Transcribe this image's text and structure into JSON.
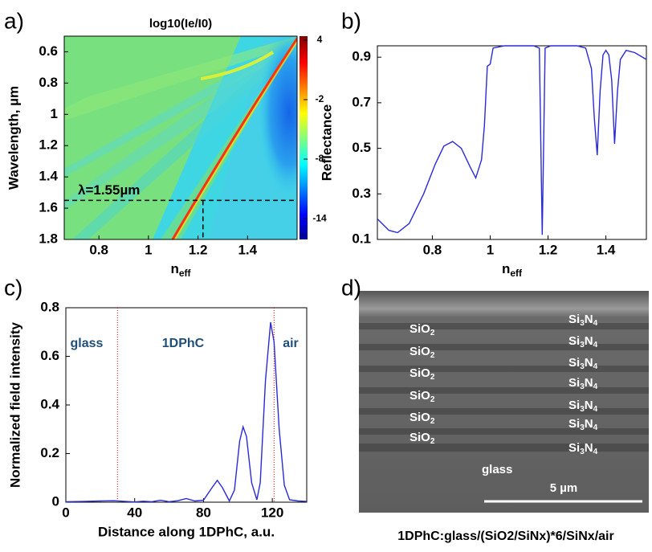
{
  "chart_data": [
    {
      "type": "heatmap",
      "panel_label": "a)",
      "title": "log10(Ie/I0)",
      "xlabel": "neff",
      "ylabel": "Wavelength, µm",
      "xlim": [
        0.66,
        1.6
      ],
      "xticks": [
        0.8,
        1,
        1.2,
        1.4
      ],
      "ylim": [
        1.8,
        0.5
      ],
      "yticks": [
        0.6,
        0.8,
        1,
        1.2,
        1.4,
        1.6,
        1.8
      ],
      "clim": [
        -16.1,
        4.4
      ],
      "cticks": [
        4,
        -2,
        -8,
        -14
      ],
      "annotation": "λ=1.55µm",
      "marker": {
        "x": 1.22,
        "y": 1.55
      }
    },
    {
      "type": "line",
      "panel_label": "b)",
      "xlabel": "neff",
      "ylabel": "Reflectance",
      "xlim": [
        0.61,
        1.54
      ],
      "xticks": [
        0.8,
        1,
        1.2,
        1.4
      ],
      "ylim": [
        0.1,
        0.95
      ],
      "yticks": [
        0.1,
        0.3,
        0.5,
        0.7,
        0.9
      ],
      "series": [
        {
          "color": "#2a2ad8",
          "x": [
            0.61,
            0.65,
            0.68,
            0.72,
            0.77,
            0.81,
            0.84,
            0.87,
            0.9,
            0.93,
            0.95,
            0.97,
            0.98,
            0.99,
            1.0,
            1.01,
            1.05,
            1.1,
            1.15,
            1.17,
            1.18,
            1.19,
            1.21,
            1.3,
            1.33,
            1.35,
            1.36,
            1.37,
            1.38,
            1.39,
            1.4,
            1.41,
            1.42,
            1.43,
            1.44,
            1.45,
            1.47,
            1.5,
            1.54
          ],
          "values": [
            0.19,
            0.14,
            0.13,
            0.17,
            0.3,
            0.43,
            0.51,
            0.53,
            0.5,
            0.42,
            0.37,
            0.45,
            0.6,
            0.86,
            0.87,
            0.94,
            0.95,
            0.95,
            0.95,
            0.94,
            0.12,
            0.94,
            0.95,
            0.95,
            0.94,
            0.85,
            0.63,
            0.47,
            0.75,
            0.91,
            0.93,
            0.91,
            0.8,
            0.52,
            0.75,
            0.89,
            0.93,
            0.92,
            0.89
          ]
        }
      ]
    },
    {
      "type": "line",
      "panel_label": "c)",
      "xlabel": "Distance along 1DPhC, a.u.",
      "ylabel": "Normalized field intensity",
      "xlim": [
        0,
        140
      ],
      "xticks": [
        0,
        40,
        80,
        120
      ],
      "ylim": [
        0,
        0.8
      ],
      "yticks": [
        0,
        0.2,
        0.4,
        0.6,
        0.8
      ],
      "annotations": [
        "glass",
        "1DPhC",
        "air"
      ],
      "boundaries": [
        30,
        121
      ],
      "series": [
        {
          "color": "#2a2ad8",
          "x": [
            0,
            10,
            20,
            28,
            35,
            40,
            45,
            50,
            55,
            60,
            65,
            70,
            75,
            80,
            85,
            88,
            91,
            95,
            98,
            101,
            103,
            105,
            108,
            111,
            113,
            116,
            119,
            121,
            124,
            127,
            130,
            135,
            140
          ],
          "values": [
            0.002,
            0.003,
            0.005,
            0.006,
            0.003,
            0.001,
            0.004,
            0.002,
            0.008,
            0.002,
            0.006,
            0.015,
            0.005,
            0.008,
            0.06,
            0.09,
            0.06,
            0.005,
            0.05,
            0.25,
            0.31,
            0.27,
            0.08,
            0.01,
            0.08,
            0.5,
            0.74,
            0.66,
            0.3,
            0.07,
            0.01,
            0.005,
            0.003
          ]
        }
      ]
    },
    {
      "type": "image",
      "panel_label": "d)",
      "left_labels": [
        "SiO2",
        "SiO2",
        "SiO2",
        "SiO2",
        "SiO2",
        "SiO2"
      ],
      "right_labels": [
        "Si3N4",
        "Si3N4",
        "Si3N4",
        "Si3N4",
        "Si3N4",
        "Si3N4",
        "Si3N4"
      ],
      "substrate_label": "glass",
      "scale_label": "5 µm",
      "caption": "1DPhC:glass/(SiO2/SiNx)*6/SiNx/air"
    }
  ]
}
